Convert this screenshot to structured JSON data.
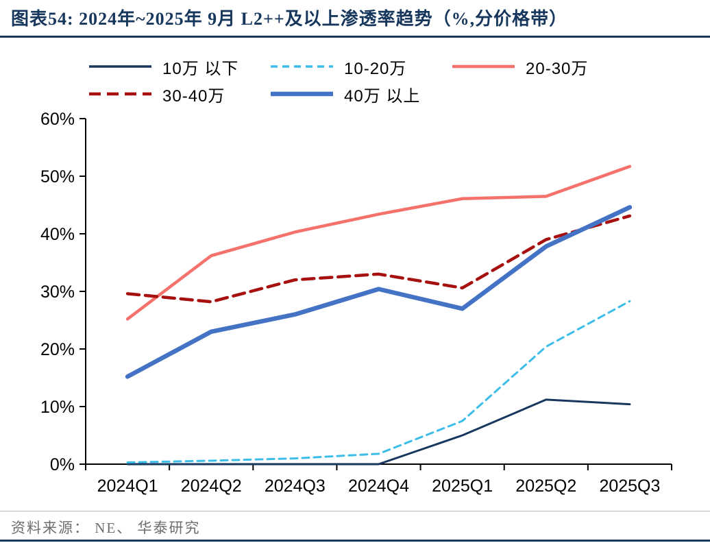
{
  "title": "图表54:  2024年~2025年 9月 L2++及以上渗透率趋势（%,分价格带）",
  "footer": {
    "text": "资料来源： NE、 华泰研究"
  },
  "colors": {
    "accent_navy": "#16365c",
    "axis": "#000000",
    "separator_gray": "#bdbdbd",
    "footer_text": "#6e6e6e"
  },
  "chart_data": {
    "type": "line",
    "title": "图表54:  2024年~2025年 9月 L2++及以上渗透率趋势（%,分价格带）",
    "categories": [
      "2024Q1",
      "2024Q2",
      "2024Q3",
      "2024Q4",
      "2025Q1",
      "2025Q2",
      "2025Q3"
    ],
    "xlabel": "",
    "ylabel": "",
    "ylim": [
      0,
      60
    ],
    "ytick_step": 10,
    "ytick_labels": [
      "0%",
      "10%",
      "20%",
      "30%",
      "40%",
      "50%",
      "60%"
    ],
    "grid": false,
    "legend_position": "top",
    "series": [
      {
        "name": "10万 以下",
        "color": "#17375e",
        "dash": "solid",
        "width": 3,
        "values": [
          0,
          0,
          0,
          0,
          5.0,
          11.2,
          10.4
        ]
      },
      {
        "name": "10-20万",
        "color": "#3bbde8",
        "dash": "dashed",
        "width": 3,
        "dash_pattern": "10 7",
        "values": [
          0.3,
          0.6,
          1.0,
          1.8,
          7.5,
          20.4,
          28.3
        ]
      },
      {
        "name": "20-30万",
        "color": "#f4716c",
        "dash": "solid",
        "width": 4.5,
        "values": [
          25.2,
          36.2,
          40.3,
          43.4,
          46.1,
          46.5,
          51.7
        ]
      },
      {
        "name": "30-40万",
        "color": "#a6110f",
        "dash": "dashed",
        "width": 4.5,
        "dash_pattern": "17 9",
        "values": [
          29.6,
          28.2,
          32.0,
          33.0,
          30.6,
          39.0,
          43.1
        ]
      },
      {
        "name": "40万 以上",
        "color": "#4472c4",
        "dash": "solid",
        "width": 6.5,
        "values": [
          15.2,
          23.0,
          26.0,
          30.4,
          27.0,
          37.8,
          44.6
        ]
      }
    ]
  }
}
